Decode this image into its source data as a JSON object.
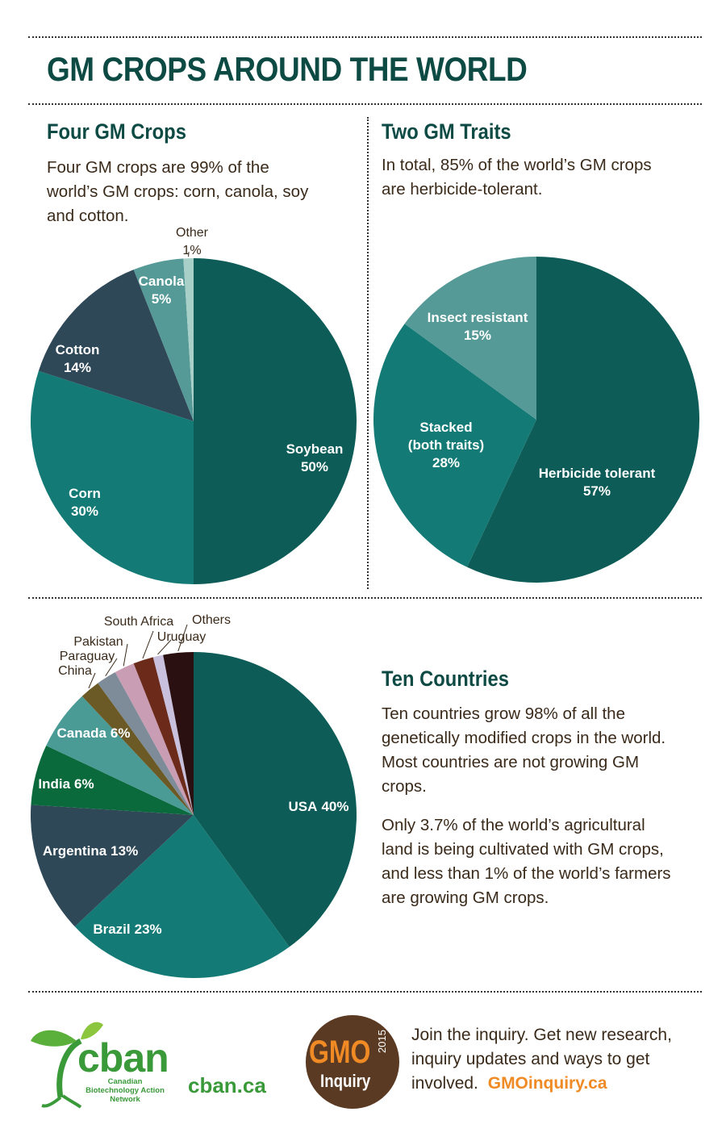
{
  "header": {
    "title": "GM CROPS AROUND THE WORLD"
  },
  "sections": [
    {
      "title": "Four GM Crops",
      "text": [
        "Four GM crops are 99% of the world’s GM crops: corn, canola, soy and cotton."
      ]
    },
    {
      "title": "Two GM Traits",
      "text": [
        "In total, 85% of the world’s GM crops are herbicide-tolerant."
      ]
    },
    {
      "title": "Ten Countries",
      "text": [
        "Ten countries grow 98% of all the genetically modified crops in the world. Most countries are not growing GM crops.",
        "Only 3.7% of the world’s agricultural land is being cultivated with GM crops, and less than 1% of the world’s farmers are growing GM crops."
      ]
    }
  ],
  "chart_data": [
    {
      "type": "pie",
      "categories": [
        "Soybean",
        "Corn",
        "Cotton",
        "Canola",
        "Other"
      ],
      "values": [
        50,
        30,
        14,
        5,
        1
      ],
      "value_labels": [
        "50%",
        "30%",
        "14%",
        "5%",
        "1%"
      ],
      "colors": [
        "#0d5c57",
        "#147a76",
        "#2f4858",
        "#559a97",
        "#a8d0c8"
      ]
    },
    {
      "type": "pie",
      "categories": [
        "Herbicide tolerant",
        "Stacked (both traits)",
        "Insect resistant"
      ],
      "values": [
        57,
        28,
        15
      ],
      "value_labels": [
        "57%",
        "28%",
        "15%"
      ],
      "colors": [
        "#0d5c57",
        "#147a76",
        "#559a97"
      ]
    },
    {
      "type": "pie",
      "categories": [
        "USA",
        "Brazil",
        "Argentina",
        "India",
        "Canada",
        "China",
        "Paraguay",
        "Pakistan",
        "South Africa",
        "Uruguay",
        "Others"
      ],
      "values": [
        40,
        23,
        13,
        6,
        6,
        2,
        2,
        2,
        2,
        1,
        3
      ],
      "value_labels": [
        "40%",
        "23%",
        "13%",
        "6%",
        "6%",
        null,
        null,
        null,
        null,
        null,
        null
      ],
      "colors": [
        "#0d5c57",
        "#147a76",
        "#2f4858",
        "#0b6a3c",
        "#4a9a96",
        "#6b5a26",
        "#7d8c98",
        "#c99db3",
        "#6b2a1a",
        "#c9c0dd",
        "#2a1010"
      ]
    }
  ],
  "footer": {
    "logo": "cban",
    "logo_subtitle": "Canadian Biotechnology Action Network",
    "site": "cban.ca",
    "badge": "GMO",
    "badge_sub": "Inquiry",
    "badge_year": "2015",
    "invite": "Join the inquiry. Get new research, inquiry updates and ways to get involved.",
    "link": "GMOinquiry.ca"
  }
}
